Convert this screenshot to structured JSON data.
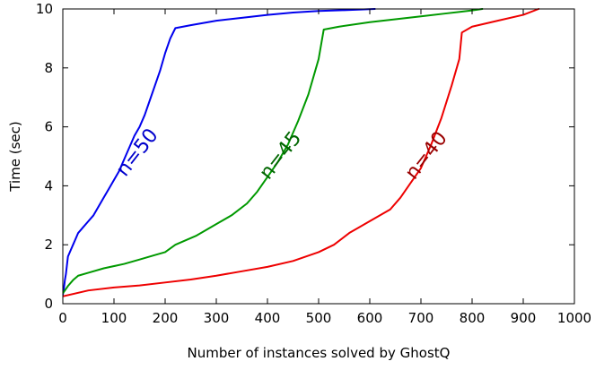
{
  "chart_data": {
    "type": "line",
    "title": "",
    "xlabel": "Number of instances solved by GhostQ",
    "ylabel": "Time (sec)",
    "xlim": [
      0,
      1000
    ],
    "ylim": [
      0,
      10
    ],
    "xticks": [
      0,
      100,
      200,
      300,
      400,
      500,
      600,
      700,
      800,
      900,
      1000
    ],
    "yticks": [
      0,
      2,
      4,
      6,
      8,
      10
    ],
    "grid": false,
    "series": [
      {
        "name": "n=50",
        "color": "#0000ee",
        "label_at": [
          155,
          5.0
        ],
        "points": [
          [
            0,
            0.3
          ],
          [
            2,
            0.5
          ],
          [
            4,
            0.8
          ],
          [
            6,
            1.0
          ],
          [
            8,
            1.3
          ],
          [
            10,
            1.6
          ],
          [
            15,
            1.8
          ],
          [
            20,
            2.0
          ],
          [
            25,
            2.2
          ],
          [
            30,
            2.4
          ],
          [
            40,
            2.6
          ],
          [
            50,
            2.8
          ],
          [
            60,
            3.0
          ],
          [
            70,
            3.3
          ],
          [
            80,
            3.6
          ],
          [
            90,
            3.9
          ],
          [
            100,
            4.2
          ],
          [
            110,
            4.5
          ],
          [
            120,
            4.9
          ],
          [
            130,
            5.3
          ],
          [
            140,
            5.7
          ],
          [
            150,
            6.0
          ],
          [
            160,
            6.4
          ],
          [
            170,
            6.9
          ],
          [
            180,
            7.4
          ],
          [
            190,
            7.9
          ],
          [
            200,
            8.5
          ],
          [
            210,
            9.0
          ],
          [
            220,
            9.35
          ],
          [
            250,
            9.45
          ],
          [
            300,
            9.6
          ],
          [
            350,
            9.7
          ],
          [
            400,
            9.8
          ],
          [
            450,
            9.88
          ],
          [
            500,
            9.93
          ],
          [
            550,
            9.96
          ],
          [
            610,
            10.0
          ]
        ]
      },
      {
        "name": "n=45",
        "color": "#009900",
        "label_at": [
          435,
          4.9
        ],
        "points": [
          [
            0,
            0.35
          ],
          [
            10,
            0.6
          ],
          [
            20,
            0.8
          ],
          [
            30,
            0.95
          ],
          [
            50,
            1.05
          ],
          [
            80,
            1.2
          ],
          [
            120,
            1.35
          ],
          [
            150,
            1.5
          ],
          [
            180,
            1.65
          ],
          [
            200,
            1.75
          ],
          [
            220,
            2.0
          ],
          [
            260,
            2.3
          ],
          [
            300,
            2.7
          ],
          [
            330,
            3.0
          ],
          [
            360,
            3.4
          ],
          [
            380,
            3.8
          ],
          [
            400,
            4.3
          ],
          [
            420,
            4.8
          ],
          [
            440,
            5.4
          ],
          [
            460,
            6.2
          ],
          [
            480,
            7.1
          ],
          [
            500,
            8.3
          ],
          [
            510,
            9.3
          ],
          [
            540,
            9.4
          ],
          [
            600,
            9.55
          ],
          [
            650,
            9.65
          ],
          [
            700,
            9.75
          ],
          [
            750,
            9.85
          ],
          [
            800,
            9.95
          ],
          [
            820,
            10.0
          ]
        ]
      },
      {
        "name": "n=40",
        "color": "#ee0000",
        "label_at": [
          720,
          4.9
        ],
        "points": [
          [
            0,
            0.25
          ],
          [
            50,
            0.45
          ],
          [
            100,
            0.55
          ],
          [
            150,
            0.62
          ],
          [
            200,
            0.72
          ],
          [
            250,
            0.82
          ],
          [
            300,
            0.95
          ],
          [
            350,
            1.1
          ],
          [
            400,
            1.25
          ],
          [
            450,
            1.45
          ],
          [
            500,
            1.75
          ],
          [
            530,
            2.0
          ],
          [
            560,
            2.4
          ],
          [
            600,
            2.8
          ],
          [
            640,
            3.2
          ],
          [
            660,
            3.6
          ],
          [
            680,
            4.1
          ],
          [
            700,
            4.6
          ],
          [
            720,
            5.4
          ],
          [
            740,
            6.3
          ],
          [
            760,
            7.4
          ],
          [
            775,
            8.3
          ],
          [
            780,
            9.2
          ],
          [
            800,
            9.4
          ],
          [
            850,
            9.6
          ],
          [
            900,
            9.8
          ],
          [
            930,
            10.0
          ]
        ]
      }
    ]
  }
}
